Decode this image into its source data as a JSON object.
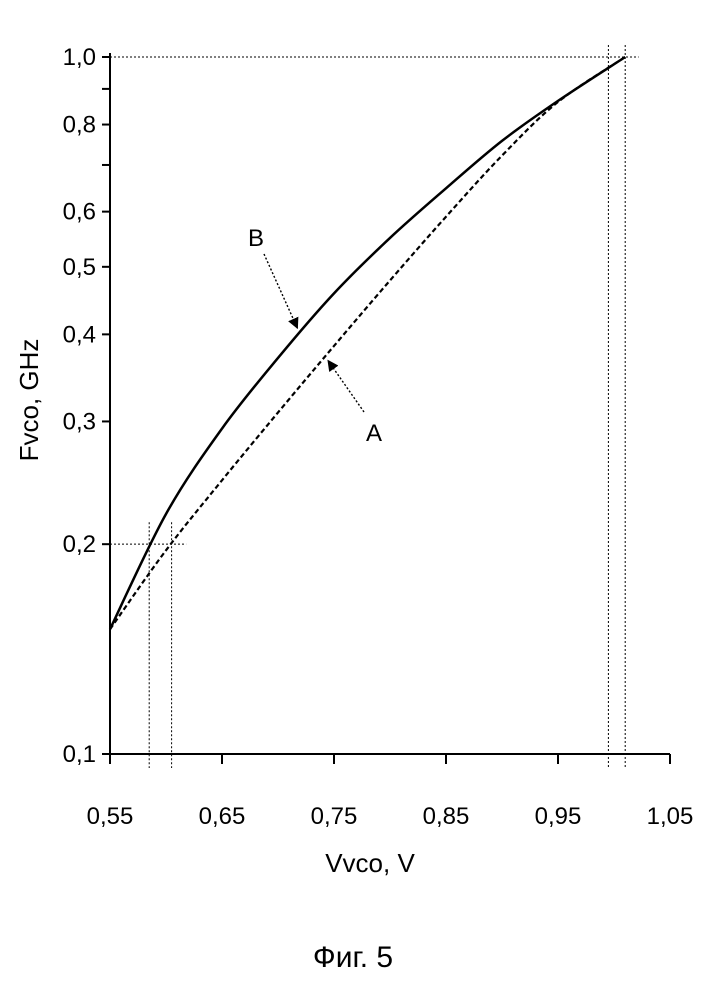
{
  "chart_data": {
    "type": "line",
    "xlabel": "Vvco, V",
    "ylabel": "Fvco, GHz",
    "xlim": [
      0.55,
      1.05
    ],
    "ylim": [
      0.1,
      1.0
    ],
    "yscale": "log",
    "grid": false,
    "x_ticks": [
      "0,55",
      "0,65",
      "0,75",
      "0,85",
      "0,95",
      "1,05"
    ],
    "x_tick_values": [
      0.55,
      0.65,
      0.75,
      0.85,
      0.95,
      1.05
    ],
    "y_ticks": [
      "0,1",
      "0,2",
      "0,3",
      "0,4",
      "0,5",
      "0,6",
      "0,8",
      "1,0"
    ],
    "y_tick_values": [
      0.1,
      0.2,
      0.3,
      0.4,
      0.5,
      0.6,
      0.8,
      1.0
    ],
    "series": [
      {
        "name": "A",
        "style": "dashed",
        "x": [
          0.55,
          0.6,
          0.65,
          0.7,
          0.75,
          0.8,
          0.85,
          0.9,
          0.95,
          1.01
        ],
        "y": [
          0.151,
          0.196,
          0.247,
          0.309,
          0.385,
          0.478,
          0.59,
          0.722,
          0.862,
          1.0
        ]
      },
      {
        "name": "B",
        "style": "solid",
        "x": [
          0.55,
          0.6,
          0.65,
          0.7,
          0.75,
          0.8,
          0.85,
          0.9,
          0.95,
          1.01
        ],
        "y": [
          0.151,
          0.221,
          0.293,
          0.37,
          0.458,
          0.55,
          0.648,
          0.758,
          0.865,
          1.0
        ]
      }
    ],
    "reference_lines": {
      "horizontal": [
        0.2,
        1.0
      ],
      "vertical": [
        0.585,
        0.605,
        0.995,
        1.01
      ]
    },
    "annotations": [
      {
        "text": "B",
        "series": "B",
        "at_x": 0.72
      },
      {
        "text": "A",
        "series": "A",
        "at_x": 0.742
      }
    ],
    "caption": "Фиг. 5"
  }
}
